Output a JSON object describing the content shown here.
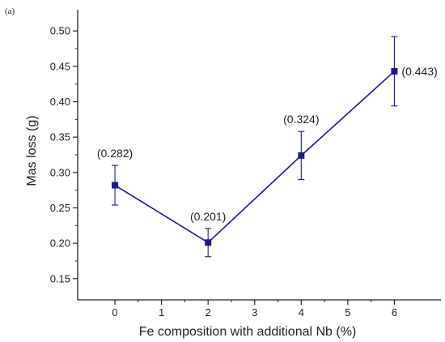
{
  "panel_label": "(a)",
  "colors": {
    "series": "#1a1a8c",
    "axis": "#222222"
  },
  "chart_data": {
    "type": "line",
    "xlabel": "Fe composition with additional Nb (%)",
    "ylabel": "Mas loss (g)",
    "xlim": [
      -0.8,
      7
    ],
    "ylim": [
      0.12,
      0.53
    ],
    "xticks": [
      0,
      1,
      2,
      3,
      4,
      5,
      6
    ],
    "yticks": [
      0.15,
      0.2,
      0.25,
      0.3,
      0.35,
      0.4,
      0.45,
      0.5
    ],
    "ytick_labels": [
      "0.15",
      "0.20",
      "0.25",
      "0.30",
      "0.35",
      "0.40",
      "0.45",
      "0.50"
    ],
    "marker": "square",
    "grid": false,
    "series": [
      {
        "x": [
          0,
          2,
          4,
          6
        ],
        "y": [
          0.282,
          0.201,
          0.324,
          0.443
        ],
        "error_low": [
          0.254,
          0.181,
          0.29,
          0.394
        ],
        "error_high": [
          0.31,
          0.221,
          0.358,
          0.492
        ],
        "data_labels": [
          "(0.282)",
          "(0.201)",
          "(0.324)",
          "(0.443)"
        ]
      }
    ]
  }
}
